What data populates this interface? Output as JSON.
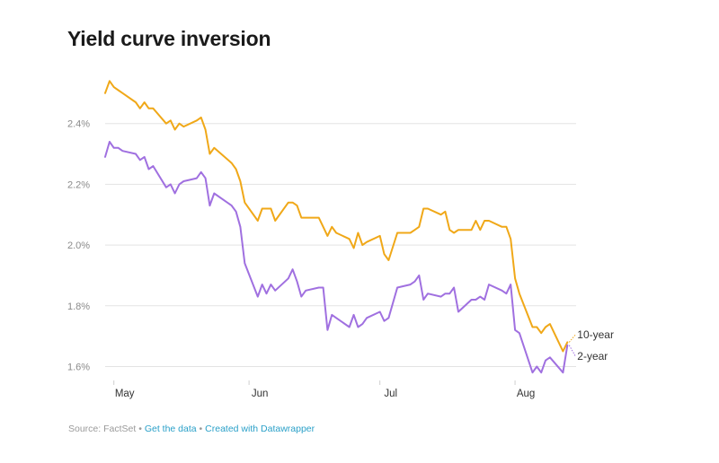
{
  "title": "Yield curve inversion",
  "footer": {
    "source": "Source: FactSet",
    "sep": "•",
    "get_data": "Get the data",
    "created_with": "Created with Datawrapper"
  },
  "chart_data": {
    "type": "line",
    "title": "Yield curve inversion",
    "xlabel": "",
    "ylabel": "",
    "ylim": [
      1.56,
      2.6
    ],
    "y_ticks": [
      1.6,
      1.8,
      2.0,
      2.2,
      2.4
    ],
    "y_tick_labels": [
      "1.6%",
      "1.8%",
      "2.0%",
      "2.2%",
      "2.4%"
    ],
    "x_ticks": [
      {
        "date": "2019-05-01",
        "label": "May"
      },
      {
        "date": "2019-06-01",
        "label": "Jun"
      },
      {
        "date": "2019-07-01",
        "label": "Jul"
      },
      {
        "date": "2019-08-01",
        "label": "Aug"
      }
    ],
    "x_range": [
      "2019-04-29",
      "2019-08-15"
    ],
    "grid": true,
    "legend": "inline labels at line ends",
    "series": [
      {
        "name": "10-year",
        "color": "#f0a818",
        "points": [
          [
            "2019-04-29",
            2.5
          ],
          [
            "2019-04-30",
            2.54
          ],
          [
            "2019-05-01",
            2.52
          ],
          [
            "2019-05-02",
            2.51
          ],
          [
            "2019-05-03",
            2.5
          ],
          [
            "2019-05-06",
            2.47
          ],
          [
            "2019-05-07",
            2.45
          ],
          [
            "2019-05-08",
            2.47
          ],
          [
            "2019-05-09",
            2.45
          ],
          [
            "2019-05-10",
            2.45
          ],
          [
            "2019-05-13",
            2.4
          ],
          [
            "2019-05-14",
            2.41
          ],
          [
            "2019-05-15",
            2.38
          ],
          [
            "2019-05-16",
            2.4
          ],
          [
            "2019-05-17",
            2.39
          ],
          [
            "2019-05-20",
            2.41
          ],
          [
            "2019-05-21",
            2.42
          ],
          [
            "2019-05-22",
            2.38
          ],
          [
            "2019-05-23",
            2.3
          ],
          [
            "2019-05-24",
            2.32
          ],
          [
            "2019-05-28",
            2.27
          ],
          [
            "2019-05-29",
            2.25
          ],
          [
            "2019-05-30",
            2.21
          ],
          [
            "2019-05-31",
            2.14
          ],
          [
            "2019-06-03",
            2.08
          ],
          [
            "2019-06-04",
            2.12
          ],
          [
            "2019-06-05",
            2.12
          ],
          [
            "2019-06-06",
            2.12
          ],
          [
            "2019-06-07",
            2.08
          ],
          [
            "2019-06-10",
            2.14
          ],
          [
            "2019-06-11",
            2.14
          ],
          [
            "2019-06-12",
            2.13
          ],
          [
            "2019-06-13",
            2.09
          ],
          [
            "2019-06-14",
            2.09
          ],
          [
            "2019-06-17",
            2.09
          ],
          [
            "2019-06-18",
            2.06
          ],
          [
            "2019-06-19",
            2.03
          ],
          [
            "2019-06-20",
            2.06
          ],
          [
            "2019-06-21",
            2.04
          ],
          [
            "2019-06-24",
            2.02
          ],
          [
            "2019-06-25",
            1.99
          ],
          [
            "2019-06-26",
            2.04
          ],
          [
            "2019-06-27",
            2.0
          ],
          [
            "2019-06-28",
            2.01
          ],
          [
            "2019-07-01",
            2.03
          ],
          [
            "2019-07-02",
            1.97
          ],
          [
            "2019-07-03",
            1.95
          ],
          [
            "2019-07-05",
            2.04
          ],
          [
            "2019-07-08",
            2.04
          ],
          [
            "2019-07-09",
            2.05
          ],
          [
            "2019-07-10",
            2.06
          ],
          [
            "2019-07-11",
            2.12
          ],
          [
            "2019-07-12",
            2.12
          ],
          [
            "2019-07-15",
            2.1
          ],
          [
            "2019-07-16",
            2.11
          ],
          [
            "2019-07-17",
            2.05
          ],
          [
            "2019-07-18",
            2.04
          ],
          [
            "2019-07-19",
            2.05
          ],
          [
            "2019-07-22",
            2.05
          ],
          [
            "2019-07-23",
            2.08
          ],
          [
            "2019-07-24",
            2.05
          ],
          [
            "2019-07-25",
            2.08
          ],
          [
            "2019-07-26",
            2.08
          ],
          [
            "2019-07-29",
            2.06
          ],
          [
            "2019-07-30",
            2.06
          ],
          [
            "2019-07-31",
            2.02
          ],
          [
            "2019-08-01",
            1.89
          ],
          [
            "2019-08-02",
            1.84
          ],
          [
            "2019-08-05",
            1.73
          ],
          [
            "2019-08-06",
            1.73
          ],
          [
            "2019-08-07",
            1.71
          ],
          [
            "2019-08-08",
            1.73
          ],
          [
            "2019-08-09",
            1.74
          ],
          [
            "2019-08-12",
            1.65
          ],
          [
            "2019-08-13",
            1.68
          ]
        ]
      },
      {
        "name": "2-year",
        "color": "#a070e0",
        "points": [
          [
            "2019-04-29",
            2.29
          ],
          [
            "2019-04-30",
            2.34
          ],
          [
            "2019-05-01",
            2.32
          ],
          [
            "2019-05-02",
            2.32
          ],
          [
            "2019-05-03",
            2.31
          ],
          [
            "2019-05-06",
            2.3
          ],
          [
            "2019-05-07",
            2.28
          ],
          [
            "2019-05-08",
            2.29
          ],
          [
            "2019-05-09",
            2.25
          ],
          [
            "2019-05-10",
            2.26
          ],
          [
            "2019-05-13",
            2.19
          ],
          [
            "2019-05-14",
            2.2
          ],
          [
            "2019-05-15",
            2.17
          ],
          [
            "2019-05-16",
            2.2
          ],
          [
            "2019-05-17",
            2.21
          ],
          [
            "2019-05-20",
            2.22
          ],
          [
            "2019-05-21",
            2.24
          ],
          [
            "2019-05-22",
            2.22
          ],
          [
            "2019-05-23",
            2.13
          ],
          [
            "2019-05-24",
            2.17
          ],
          [
            "2019-05-28",
            2.13
          ],
          [
            "2019-05-29",
            2.11
          ],
          [
            "2019-05-30",
            2.06
          ],
          [
            "2019-05-31",
            1.94
          ],
          [
            "2019-06-03",
            1.83
          ],
          [
            "2019-06-04",
            1.87
          ],
          [
            "2019-06-05",
            1.84
          ],
          [
            "2019-06-06",
            1.87
          ],
          [
            "2019-06-07",
            1.85
          ],
          [
            "2019-06-10",
            1.89
          ],
          [
            "2019-06-11",
            1.92
          ],
          [
            "2019-06-12",
            1.88
          ],
          [
            "2019-06-13",
            1.83
          ],
          [
            "2019-06-14",
            1.85
          ],
          [
            "2019-06-17",
            1.86
          ],
          [
            "2019-06-18",
            1.86
          ],
          [
            "2019-06-19",
            1.72
          ],
          [
            "2019-06-20",
            1.77
          ],
          [
            "2019-06-21",
            1.76
          ],
          [
            "2019-06-24",
            1.73
          ],
          [
            "2019-06-25",
            1.77
          ],
          [
            "2019-06-26",
            1.73
          ],
          [
            "2019-06-27",
            1.74
          ],
          [
            "2019-06-28",
            1.76
          ],
          [
            "2019-07-01",
            1.78
          ],
          [
            "2019-07-02",
            1.75
          ],
          [
            "2019-07-03",
            1.76
          ],
          [
            "2019-07-05",
            1.86
          ],
          [
            "2019-07-08",
            1.87
          ],
          [
            "2019-07-09",
            1.88
          ],
          [
            "2019-07-10",
            1.9
          ],
          [
            "2019-07-11",
            1.82
          ],
          [
            "2019-07-12",
            1.84
          ],
          [
            "2019-07-15",
            1.83
          ],
          [
            "2019-07-16",
            1.84
          ],
          [
            "2019-07-17",
            1.84
          ],
          [
            "2019-07-18",
            1.86
          ],
          [
            "2019-07-19",
            1.78
          ],
          [
            "2019-07-22",
            1.82
          ],
          [
            "2019-07-23",
            1.82
          ],
          [
            "2019-07-24",
            1.83
          ],
          [
            "2019-07-25",
            1.82
          ],
          [
            "2019-07-26",
            1.87
          ],
          [
            "2019-07-29",
            1.85
          ],
          [
            "2019-07-30",
            1.84
          ],
          [
            "2019-07-31",
            1.87
          ],
          [
            "2019-08-01",
            1.72
          ],
          [
            "2019-08-02",
            1.71
          ],
          [
            "2019-08-05",
            1.58
          ],
          [
            "2019-08-06",
            1.6
          ],
          [
            "2019-08-07",
            1.58
          ],
          [
            "2019-08-08",
            1.62
          ],
          [
            "2019-08-09",
            1.63
          ],
          [
            "2019-08-12",
            1.58
          ],
          [
            "2019-08-13",
            1.67
          ]
        ]
      }
    ]
  }
}
